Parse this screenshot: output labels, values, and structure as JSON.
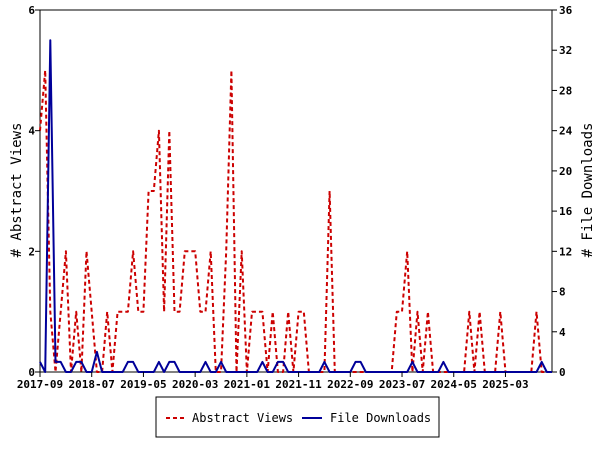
{
  "chart_data": {
    "type": "line",
    "title": "",
    "x_tick_labels": [
      "2017-09",
      "2018-07",
      "2019-05",
      "2020-03",
      "2021-01",
      "2021-11",
      "2022-09",
      "2023-07",
      "2024-05",
      "2025-03"
    ],
    "x_range": [
      "2017-09",
      "2025-12"
    ],
    "ylabel_left": "# Abstract Views",
    "ylabel_right": "# File Downloads",
    "ylim_left": [
      0,
      6
    ],
    "yticks_left": [
      "0",
      "2",
      "4",
      "6"
    ],
    "ylim_right": [
      0,
      36
    ],
    "yticks_right": [
      "0",
      "4",
      "8",
      "12",
      "16",
      "20",
      "24",
      "28",
      "32",
      "36"
    ],
    "legend_position": "bottom",
    "x": [
      "2017-09",
      "2017-10",
      "2017-11",
      "2017-12",
      "2018-01",
      "2018-02",
      "2018-03",
      "2018-04",
      "2018-05",
      "2018-06",
      "2018-07",
      "2018-08",
      "2018-09",
      "2018-10",
      "2018-11",
      "2018-12",
      "2019-01",
      "2019-02",
      "2019-03",
      "2019-04",
      "2019-05",
      "2019-06",
      "2019-07",
      "2019-08",
      "2019-09",
      "2019-10",
      "2019-11",
      "2019-12",
      "2020-01",
      "2020-02",
      "2020-03",
      "2020-04",
      "2020-05",
      "2020-06",
      "2020-07",
      "2020-08",
      "2020-09",
      "2020-10",
      "2020-11",
      "2020-12",
      "2021-01",
      "2021-02",
      "2021-03",
      "2021-04",
      "2021-05",
      "2021-06",
      "2021-07",
      "2021-08",
      "2021-09",
      "2021-10",
      "2021-11",
      "2021-12",
      "2022-01",
      "2022-02",
      "2022-03",
      "2022-04",
      "2022-05",
      "2022-06",
      "2022-07",
      "2022-08",
      "2022-09",
      "2022-10",
      "2022-11",
      "2022-12",
      "2023-01",
      "2023-02",
      "2023-03",
      "2023-04",
      "2023-05",
      "2023-06",
      "2023-07",
      "2023-08",
      "2023-09",
      "2023-10",
      "2023-11",
      "2023-12",
      "2024-01",
      "2024-02",
      "2024-03",
      "2024-04",
      "2024-05",
      "2024-06",
      "2024-07",
      "2024-08",
      "2024-09",
      "2024-10",
      "2024-11",
      "2024-12",
      "2025-01",
      "2025-02",
      "2025-03",
      "2025-04",
      "2025-05",
      "2025-06",
      "2025-07",
      "2025-08",
      "2025-09",
      "2025-10",
      "2025-11",
      "2025-12"
    ],
    "series": [
      {
        "name": "Abstract Views",
        "axis": "left",
        "color": "#cc0000",
        "style": "dashed",
        "values": [
          4,
          5,
          1,
          0,
          1,
          2,
          0,
          1,
          0,
          2,
          1,
          0,
          0,
          1,
          0,
          1,
          1,
          1,
          2,
          1,
          1,
          3,
          3,
          4,
          1,
          4,
          1,
          1,
          2,
          2,
          2,
          1,
          1,
          2,
          0,
          0,
          2,
          5,
          0,
          2,
          0,
          1,
          1,
          1,
          0,
          1,
          0,
          0,
          1,
          0,
          1,
          1,
          0,
          0,
          0,
          0,
          3,
          0,
          0,
          0,
          0,
          0,
          0,
          0,
          0,
          0,
          0,
          0,
          0,
          1,
          1,
          2,
          0,
          1,
          0,
          1,
          0,
          0,
          0,
          0,
          0,
          0,
          0,
          1,
          0,
          1,
          0,
          0,
          0,
          1,
          0,
          0,
          0,
          0,
          0,
          0,
          1,
          0,
          0,
          0
        ]
      },
      {
        "name": "File Downloads",
        "axis": "right",
        "color": "#000099",
        "style": "solid",
        "values": [
          1,
          0,
          33,
          1,
          1,
          0,
          0,
          1,
          1,
          0,
          0,
          2,
          0,
          0,
          0,
          0,
          0,
          1,
          1,
          0,
          0,
          0,
          0,
          1,
          0,
          1,
          1,
          0,
          0,
          0,
          0,
          0,
          1,
          0,
          0,
          1,
          0,
          0,
          0,
          0,
          0,
          0,
          0,
          1,
          0,
          0,
          1,
          1,
          0,
          0,
          0,
          0,
          0,
          0,
          0,
          1,
          0,
          0,
          0,
          0,
          0,
          1,
          1,
          0,
          0,
          0,
          0,
          0,
          0,
          0,
          0,
          0,
          1,
          0,
          0,
          0,
          0,
          0,
          1,
          0,
          0,
          0,
          0,
          0,
          0,
          0,
          0,
          0,
          0,
          0,
          0,
          0,
          0,
          0,
          0,
          0,
          0,
          1,
          0,
          0
        ]
      }
    ]
  }
}
